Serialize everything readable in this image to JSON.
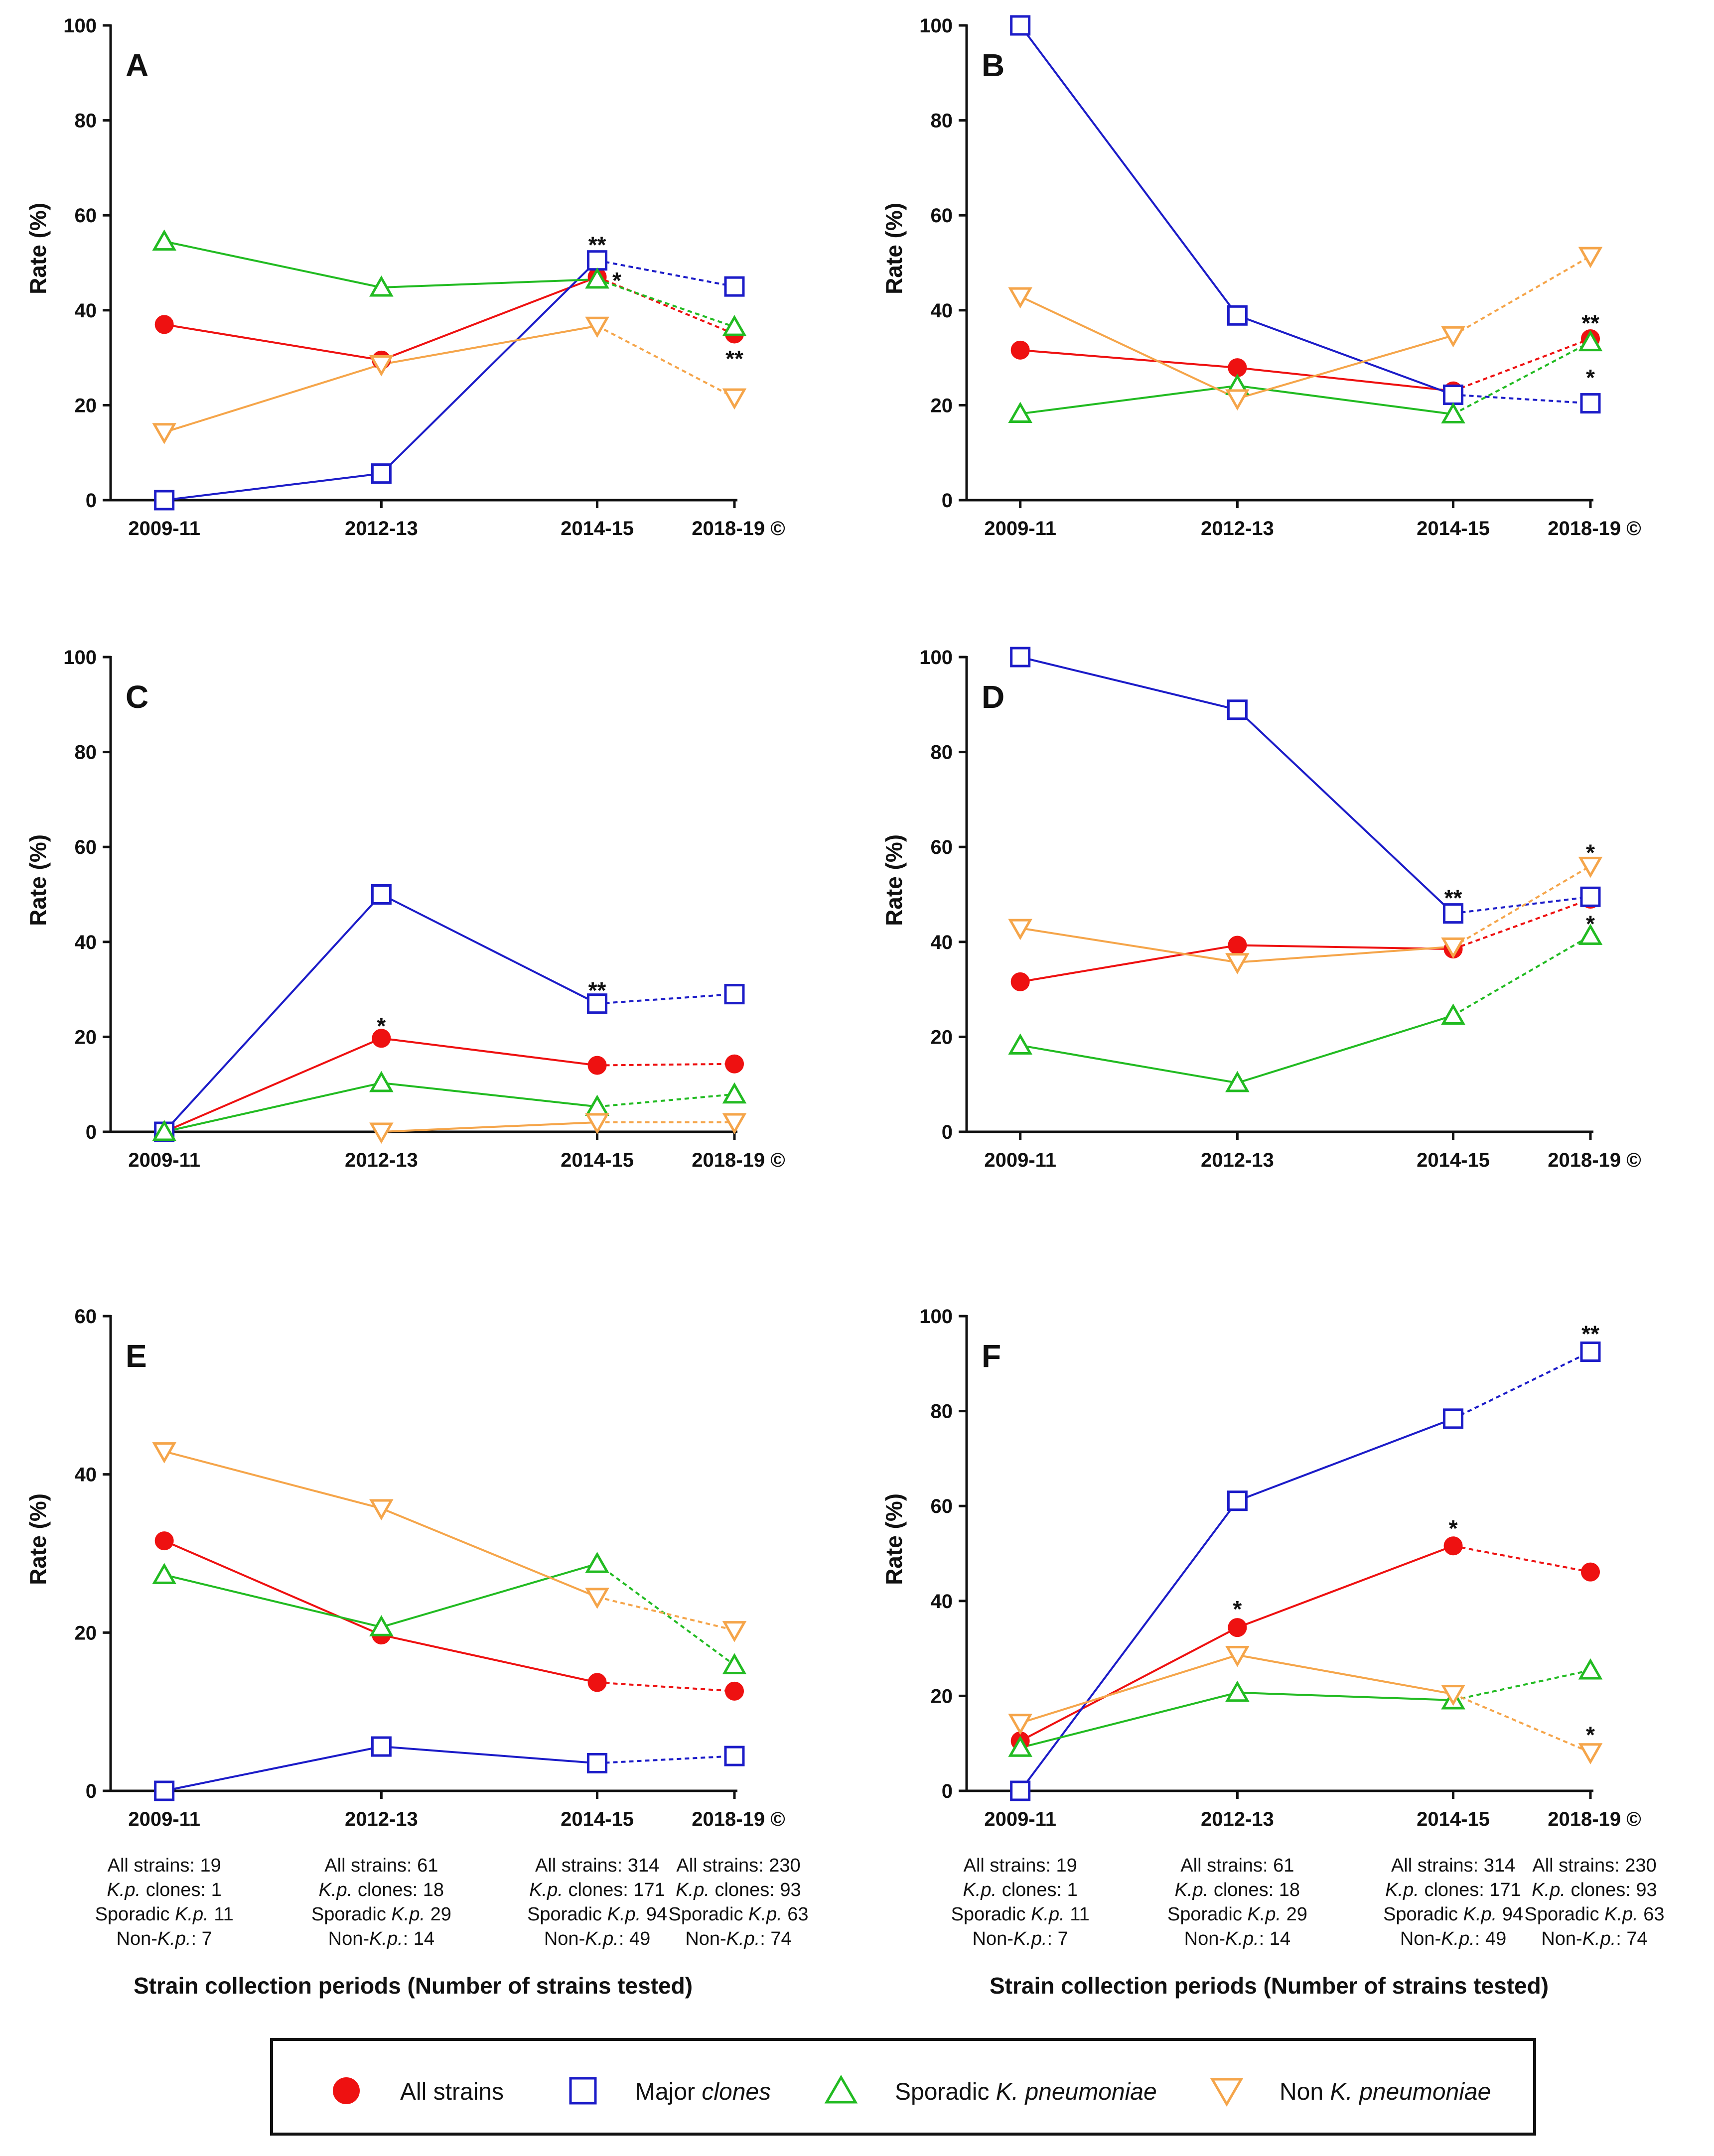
{
  "chart_data": {
    "type": "line",
    "categories": [
      "2009-11",
      "2012-13",
      "2014-15",
      "2018-19 ©"
    ],
    "dashed_from_index": 2,
    "ylabel": "Rate  (%)",
    "xlabel": "Strain collection periods (Number of strains tested)",
    "series_styles": [
      {
        "key": "all",
        "name": "All strains",
        "color": "#ee1111",
        "marker": "filled-circle"
      },
      {
        "key": "major",
        "name_parts": [
          {
            "t": "Major ",
            "i": false
          },
          {
            "t": "clones",
            "i": true
          }
        ],
        "color": "#1c1cc8",
        "marker": "open-square"
      },
      {
        "key": "sporadic",
        "name_parts": [
          {
            "t": "Sporadic ",
            "i": false
          },
          {
            "t": "K. pneumoniae",
            "i": true
          }
        ],
        "color": "#22bb22",
        "marker": "open-triangle-up"
      },
      {
        "key": "non",
        "name_parts": [
          {
            "t": "Non ",
            "i": false
          },
          {
            "t": "K. pneumoniae",
            "i": true
          }
        ],
        "color": "#f5a54a",
        "marker": "open-triangle-down"
      }
    ],
    "panels": [
      {
        "label": "A",
        "ylim": [
          0,
          100
        ],
        "yticks": [
          0,
          20,
          40,
          60,
          80,
          100
        ],
        "series": [
          {
            "key": "all",
            "values": [
              37,
              29.5,
              47,
              35
            ]
          },
          {
            "key": "major",
            "values": [
              0,
              5.6,
              50.5,
              45
            ]
          },
          {
            "key": "sporadic",
            "values": [
              54.5,
              44.8,
              46.5,
              36.5
            ]
          },
          {
            "key": "non",
            "values": [
              14.3,
              28.6,
              36.7,
              21.6
            ]
          }
        ],
        "annotations": [
          {
            "text": "**",
            "x": 2,
            "y": 54
          },
          {
            "text": "*",
            "x": 2.09,
            "y": 46.5
          },
          {
            "text": "**",
            "x": 3,
            "y": 30
          }
        ]
      },
      {
        "label": "B",
        "ylim": [
          0,
          100
        ],
        "yticks": [
          0,
          20,
          40,
          60,
          80,
          100
        ],
        "series": [
          {
            "key": "all",
            "values": [
              31.6,
              27.9,
              23,
              34
            ]
          },
          {
            "key": "major",
            "values": [
              100,
              38.9,
              22.2,
              20.4
            ]
          },
          {
            "key": "sporadic",
            "values": [
              18.2,
              24.1,
              18.1,
              33.3
            ]
          },
          {
            "key": "non",
            "values": [
              42.9,
              21.4,
              34.7,
              51.4
            ]
          }
        ],
        "annotations": [
          {
            "text": "**",
            "x": 3,
            "y": 37.5
          },
          {
            "text": "*",
            "x": 3,
            "y": 26
          }
        ]
      },
      {
        "label": "C",
        "ylim": [
          0,
          100
        ],
        "yticks": [
          0,
          20,
          40,
          60,
          80,
          100
        ],
        "series": [
          {
            "key": "all",
            "values": [
              0,
              19.7,
              14,
              14.3
            ]
          },
          {
            "key": "major",
            "values": [
              0,
              50,
              27,
              29
            ]
          },
          {
            "key": "sporadic",
            "values": [
              0,
              10.3,
              5.3,
              7.9
            ]
          },
          {
            "key": "non",
            "values": [
              null,
              0,
              2,
              2
            ]
          }
        ],
        "annotations": [
          {
            "text": "*",
            "x": 1,
            "y": 22.5
          },
          {
            "text": "**",
            "x": 2,
            "y": 30
          }
        ]
      },
      {
        "label": "D",
        "ylim": [
          0,
          100
        ],
        "yticks": [
          0,
          20,
          40,
          60,
          80,
          100
        ],
        "series": [
          {
            "key": "all",
            "values": [
              31.6,
              39.3,
              38.5,
              49
            ]
          },
          {
            "key": "major",
            "values": [
              100,
              88.9,
              46,
              49.5
            ]
          },
          {
            "key": "sporadic",
            "values": [
              18.2,
              10.3,
              24.5,
              41.3
            ]
          },
          {
            "key": "non",
            "values": [
              42.9,
              35.7,
              39,
              56
            ]
          }
        ],
        "annotations": [
          {
            "text": "**",
            "x": 2,
            "y": 49.5
          },
          {
            "text": "*",
            "x": 3,
            "y": 59
          },
          {
            "text": "*",
            "x": 3,
            "y": 44
          }
        ]
      },
      {
        "label": "E",
        "ylim": [
          0,
          60
        ],
        "yticks": [
          0,
          20,
          40,
          60
        ],
        "series": [
          {
            "key": "all",
            "values": [
              31.6,
              19.7,
              13.7,
              12.6
            ]
          },
          {
            "key": "major",
            "values": [
              0,
              5.6,
              3.5,
              4.4
            ]
          },
          {
            "key": "sporadic",
            "values": [
              27.3,
              20.7,
              28.7,
              15.9
            ]
          },
          {
            "key": "non",
            "values": [
              42.9,
              35.7,
              24.5,
              20.3
            ]
          }
        ],
        "annotations": []
      },
      {
        "label": "F",
        "ylim": [
          0,
          100
        ],
        "yticks": [
          0,
          20,
          40,
          60,
          80,
          100
        ],
        "series": [
          {
            "key": "all",
            "values": [
              10.5,
              34.4,
              51.6,
              46.1
            ]
          },
          {
            "key": "major",
            "values": [
              0,
              61.1,
              78.4,
              92.5
            ]
          },
          {
            "key": "sporadic",
            "values": [
              9.1,
              20.7,
              19.1,
              25.4
            ]
          },
          {
            "key": "non",
            "values": [
              14.3,
              28.6,
              20.4,
              8.1
            ]
          }
        ],
        "annotations": [
          {
            "text": "*",
            "x": 1,
            "y": 38.5
          },
          {
            "text": "*",
            "x": 2,
            "y": 55.5
          },
          {
            "text": "**",
            "x": 3,
            "y": 96.5
          },
          {
            "text": "*",
            "x": 3,
            "y": 12
          }
        ]
      }
    ],
    "strain_counts": [
      [
        [
          {
            "t": "All strains: 19",
            "i": false
          }
        ],
        [
          {
            "t": "K.p.",
            "i": true
          },
          {
            "t": " clones: 1",
            "i": false
          }
        ],
        [
          {
            "t": "Sporadic ",
            "i": false
          },
          {
            "t": "K.p.",
            "i": true
          },
          {
            "t": " 11",
            "i": false
          }
        ],
        [
          {
            "t": "Non-",
            "i": false
          },
          {
            "t": "K.p.",
            "i": true
          },
          {
            "t": ": 7",
            "i": false
          }
        ]
      ],
      [
        [
          {
            "t": "All strains: 61",
            "i": false
          }
        ],
        [
          {
            "t": "K.p.",
            "i": true
          },
          {
            "t": " clones: 18",
            "i": false
          }
        ],
        [
          {
            "t": "Sporadic ",
            "i": false
          },
          {
            "t": "K.p.",
            "i": true
          },
          {
            "t": " 29",
            "i": false
          }
        ],
        [
          {
            "t": "Non-",
            "i": false
          },
          {
            "t": "K.p.",
            "i": true
          },
          {
            "t": ": 14",
            "i": false
          }
        ]
      ],
      [
        [
          {
            "t": "All strains: 314",
            "i": false
          }
        ],
        [
          {
            "t": "K.p.",
            "i": true
          },
          {
            "t": " clones: 171",
            "i": false
          }
        ],
        [
          {
            "t": "Sporadic ",
            "i": false
          },
          {
            "t": "K.p.",
            "i": true
          },
          {
            "t": " 94",
            "i": false
          }
        ],
        [
          {
            "t": "Non-",
            "i": false
          },
          {
            "t": "K.p.",
            "i": true
          },
          {
            "t": ": 49",
            "i": false
          }
        ]
      ],
      [
        [
          {
            "t": "All strains: 230",
            "i": false
          }
        ],
        [
          {
            "t": "K.p.",
            "i": true
          },
          {
            "t": " clones: 93",
            "i": false
          }
        ],
        [
          {
            "t": "Sporadic ",
            "i": false
          },
          {
            "t": "K.p.",
            "i": true
          },
          {
            "t": " 63",
            "i": false
          }
        ],
        [
          {
            "t": "Non-",
            "i": false
          },
          {
            "t": "K.p.",
            "i": true
          },
          {
            "t": ": 74",
            "i": false
          }
        ]
      ]
    ]
  }
}
